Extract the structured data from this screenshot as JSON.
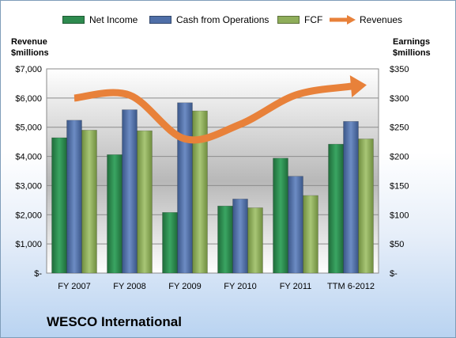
{
  "legend": [
    {
      "label": "Net Income",
      "color": "#2e8b4f"
    },
    {
      "label": "Cash from Operations",
      "color": "#4f6fa8"
    },
    {
      "label": "FCF",
      "color": "#8fae5a"
    },
    {
      "label": "Revenues",
      "color": "#e8813a"
    }
  ],
  "axes": {
    "left_title_line1": "Revenue",
    "left_title_line2": "$millions",
    "right_title_line1": "Earnings",
    "right_title_line2": "$millions"
  },
  "title": "WESCO International",
  "chart_data": {
    "type": "bar",
    "title": "WESCO International",
    "categories": [
      "FY 2007",
      "FY 2008",
      "FY 2009",
      "FY 2010",
      "FY 2011",
      "TTM 6-2012"
    ],
    "series": [
      {
        "name": "Net Income",
        "values": [
          232,
          203,
          104,
          115,
          197,
          221
        ],
        "axis": "right"
      },
      {
        "name": "Cash from Operations",
        "values": [
          262,
          280,
          292,
          127,
          166,
          260
        ],
        "axis": "right"
      },
      {
        "name": "FCF",
        "values": [
          245,
          244,
          278,
          112,
          133,
          230
        ],
        "axis": "right"
      },
      {
        "name": "Revenues",
        "values": [
          6000,
          6100,
          4600,
          5100,
          6100,
          6400
        ],
        "axis": "left",
        "style": "arrow-line"
      }
    ],
    "ylim_left": [
      0,
      7000
    ],
    "ylim_right": [
      0,
      350
    ],
    "left_ticks": [
      "$-",
      "$1,000",
      "$2,000",
      "$3,000",
      "$4,000",
      "$5,000",
      "$6,000",
      "$7,000"
    ],
    "right_ticks": [
      "$-",
      "$50",
      "$100",
      "$150",
      "$200",
      "$250",
      "$300",
      "$350"
    ],
    "ylabel_left": "Revenue $millions",
    "ylabel_right": "Earnings $millions",
    "legend_position": "top",
    "grid": true
  }
}
